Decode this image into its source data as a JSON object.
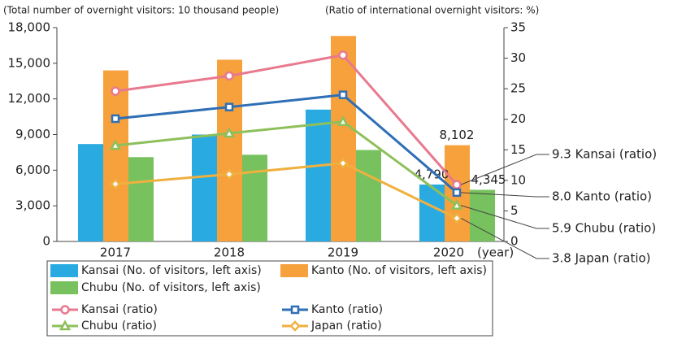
{
  "chart_data": {
    "type": "bar-line",
    "y_label": "(Total number of overnight visitors: 10 thousand people)",
    "y2_label": "(Ratio of international overnight visitors: %)",
    "x_label": "(year)",
    "categories": [
      "2017",
      "2018",
      "2019",
      "2020"
    ],
    "series": [
      {
        "name": "Kansai (No. of visitors, left axis)",
        "kind": "bar",
        "color": "#29abe2",
        "values": [
          8200,
          9000,
          11100,
          4790
        ],
        "value_labels": [
          null,
          null,
          null,
          "4,790"
        ]
      },
      {
        "name": "Kanto (No. of visitors, left axis)",
        "kind": "bar",
        "color": "#f7a13c",
        "values": [
          14400,
          15300,
          17300,
          8102
        ],
        "value_labels": [
          null,
          null,
          null,
          "8,102"
        ]
      },
      {
        "name": "Chubu (No. of visitors, left axis)",
        "kind": "bar",
        "color": "#77c25e",
        "values": [
          7100,
          7300,
          7700,
          4345
        ],
        "value_labels": [
          null,
          null,
          null,
          "4,345"
        ]
      },
      {
        "name": "Kansai (ratio)",
        "kind": "line",
        "marker": "circle",
        "axis": "y2",
        "color": "#e8798f",
        "values": [
          24.6,
          27.1,
          30.5,
          9.3
        ]
      },
      {
        "name": "Kanto (ratio)",
        "kind": "line",
        "marker": "square",
        "axis": "y2",
        "color": "#2f6fb5",
        "values": [
          20.1,
          22.0,
          24.0,
          8.0
        ]
      },
      {
        "name": "Chubu (ratio)",
        "kind": "line",
        "marker": "triangle",
        "axis": "y2",
        "color": "#8dc05a",
        "values": [
          15.7,
          17.7,
          19.6,
          5.9
        ]
      },
      {
        "name": "Japan (ratio)",
        "kind": "line",
        "marker": "diamond",
        "axis": "y2",
        "color": "#f0b040",
        "values": [
          9.4,
          11.0,
          12.8,
          3.8
        ]
      }
    ],
    "annotations": [
      "9.3 Kansai (ratio)",
      "8.0 Kanto (ratio)",
      "5.9 Chubu (ratio)",
      "3.8 Japan (ratio)"
    ],
    "ylim": [
      0,
      18000
    ],
    "yticks": [
      0,
      {
        "value": 3000,
        "label": "3,000"
      },
      {
        "value": 6000,
        "label": "6,000"
      },
      {
        "value": 9000,
        "label": "9,000"
      },
      {
        "value": 12000,
        "label": "12,000"
      },
      {
        "value": 15000,
        "label": "15,000"
      },
      {
        "value": 18000,
        "label": "18,000"
      }
    ],
    "y2lim": [
      0,
      35
    ],
    "y2ticks": [
      0,
      5,
      10,
      15,
      20,
      25,
      30,
      35
    ],
    "grid": false
  }
}
